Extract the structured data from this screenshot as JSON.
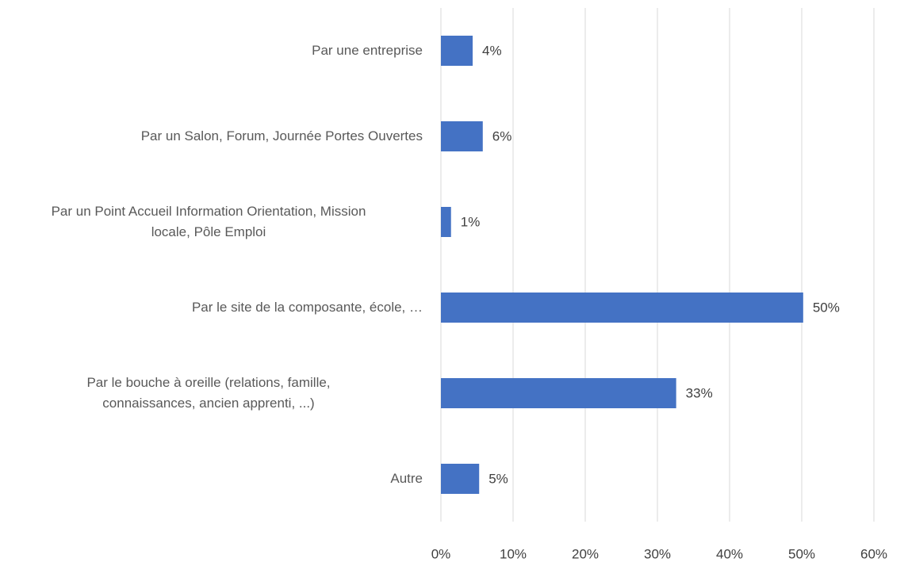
{
  "chart_data": {
    "type": "bar",
    "orientation": "horizontal",
    "categories": [
      "Par une entreprise",
      "Par un Salon, Forum, Journée Portes Ouvertes",
      "Par un Point Accueil Information Orientation, Mission\nlocale, Pôle Emploi",
      "Par le site de la composante, école, …",
      "Par le bouche à oreille (relations, famille,\nconnaissances, ancien apprenti, ...)",
      "Autre"
    ],
    "values": [
      4.4,
      5.8,
      1.4,
      50.2,
      32.6,
      5.3
    ],
    "value_labels": [
      "4%",
      "6%",
      "1%",
      "50%",
      "33%",
      "5%"
    ],
    "color": "#4472c4",
    "xlim": [
      0,
      60
    ],
    "xticks": [
      {
        "value": 0,
        "label": "0%"
      },
      {
        "value": 10,
        "label": "10%"
      },
      {
        "value": 20,
        "label": "20%"
      },
      {
        "value": 30,
        "label": "30%"
      },
      {
        "value": 40,
        "label": "40%"
      },
      {
        "value": 50,
        "label": "50%"
      },
      {
        "value": 60,
        "label": "60%"
      }
    ],
    "grid": true
  }
}
